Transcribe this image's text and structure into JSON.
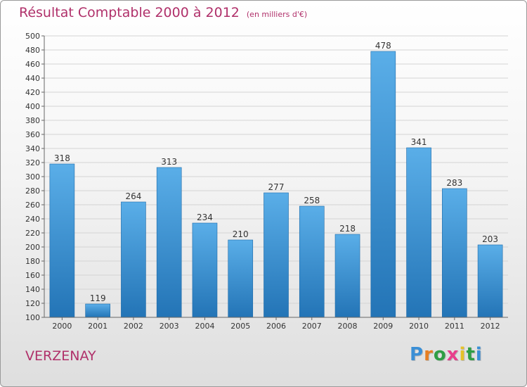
{
  "header": {
    "title": "Résultat Comptable 2000 à 2012",
    "unit": "(en milliers d'€)"
  },
  "footer": {
    "town": "VERZENAY",
    "logo": "Proxiti",
    "logo_colors": [
      "#3a8fd6",
      "#e67e22",
      "#2f9e44",
      "#e83e8c",
      "#e6c229",
      "#2f9e44",
      "#3a8fd6"
    ]
  },
  "colors": {
    "accent": "#b0306a",
    "bar_top": "#5aaee8",
    "bar_bottom": "#2374b6",
    "grid": "#d4d4d4",
    "axis_text": "#333333"
  },
  "chart_data": {
    "type": "bar",
    "title": "Résultat Comptable 2000 à 2012",
    "subtitle": "(en milliers d'€)",
    "xlabel": "",
    "ylabel": "",
    "categories": [
      "2000",
      "2001",
      "2002",
      "2003",
      "2004",
      "2005",
      "2006",
      "2007",
      "2008",
      "2009",
      "2010",
      "2011",
      "2012"
    ],
    "values": [
      318,
      119,
      264,
      313,
      234,
      210,
      277,
      258,
      218,
      478,
      341,
      283,
      203
    ],
    "ylim": [
      100,
      500
    ],
    "ytick_step": 20,
    "grid": true,
    "data_labels": true
  }
}
